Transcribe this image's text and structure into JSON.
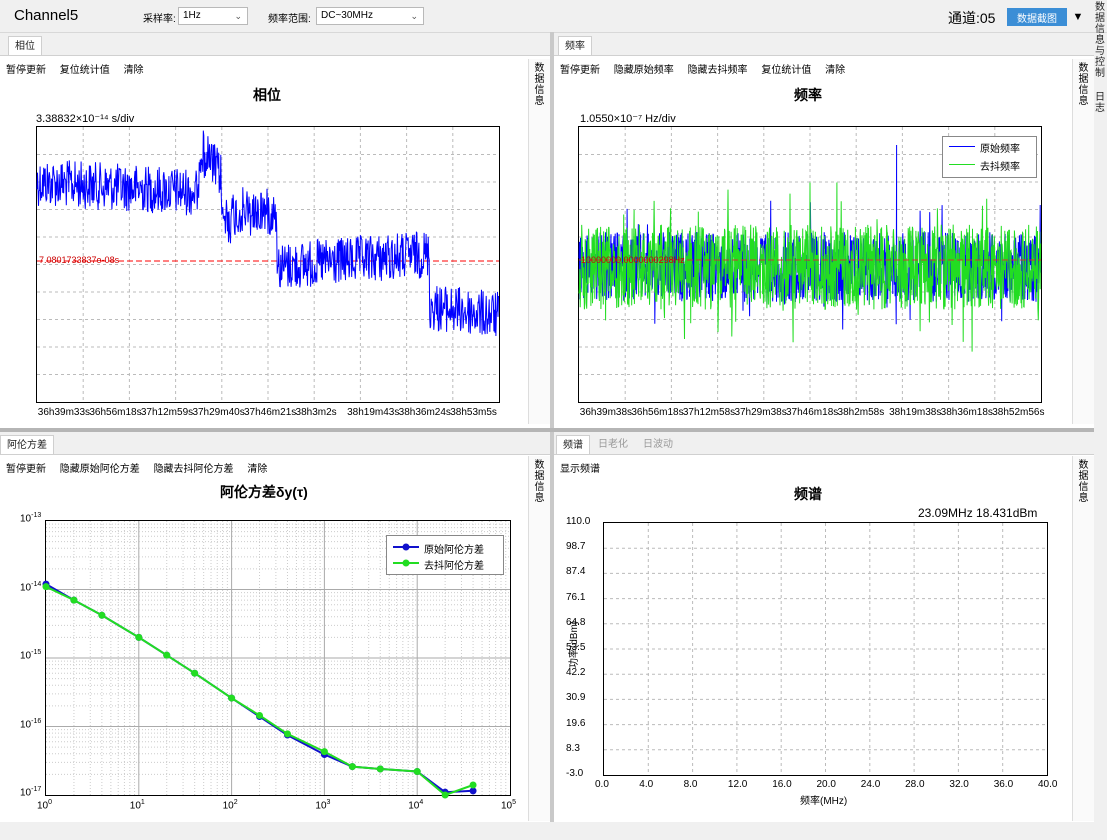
{
  "app": {
    "channel_title": "Channel5",
    "sample_rate_label": "采样率:",
    "sample_rate_value": "1Hz",
    "freq_range_label": "频率范围:",
    "freq_range_value": "DC~30MHz",
    "channel_label": "通道:05",
    "screenshot_button": "数据截图",
    "dropdown_icon": "triangle-down-icon",
    "side_tabs": [
      "数据信息与控制",
      "日志"
    ]
  },
  "phase_panel": {
    "tab": "相位",
    "toolbar": [
      "暂停更新",
      "复位统计值",
      "清除"
    ],
    "side_label": "数据信息",
    "title": "相位",
    "scale": "3.38832×10⁻¹⁴ s/div",
    "mean_label": "7.0801733837e-08s",
    "x_ticks": [
      "36h39m33s",
      "36h56m18s",
      "37h12m59s",
      "37h29m40s",
      "37h46m21s",
      "38h3m2s",
      "38h19m43s",
      "38h36m24s",
      "38h53m5s"
    ],
    "line_color": "#0000ff",
    "mean_color": "#ff0000"
  },
  "freq_panel": {
    "tab": "频率",
    "toolbar": [
      "暂停更新",
      "隐藏原始频率",
      "隐藏去抖频率",
      "复位统计值",
      "清除"
    ],
    "side_label": "数据信息",
    "title": "频率",
    "scale": "1.0550×10⁻⁷ Hz/div",
    "mean_label": "10000000.0000000298Hz",
    "legend": [
      "原始频率",
      "去抖频率"
    ],
    "x_ticks": [
      "36h39m38s",
      "36h56m18s",
      "37h12m58s",
      "37h29m38s",
      "37h46m18s",
      "38h2m58s",
      "38h19m38s",
      "38h36m18s",
      "38h52m56s"
    ],
    "raw_color": "#0000ff",
    "dejitter_color": "#22dd22"
  },
  "adev_panel": {
    "tab": "阿伦方差",
    "toolbar": [
      "暂停更新",
      "隐藏原始阿伦方差",
      "隐藏去抖阿伦方差",
      "清除"
    ],
    "side_label": "数据信息"
  },
  "spectrum_panel": {
    "tabs": [
      "频谱",
      "日老化",
      "日波动"
    ],
    "toolbar": [
      "显示频谱"
    ],
    "side_label": "数据信息"
  },
  "chart_data": [
    {
      "type": "line",
      "title": "阿伦方差δy(τ)",
      "xscale": "log",
      "yscale": "log",
      "xlim": [
        1,
        100000
      ],
      "ylim": [
        1e-17,
        1e-13
      ],
      "x_tick_labels": [
        "10^0",
        "10^1",
        "10^2",
        "10^3",
        "10^4",
        "10^5"
      ],
      "y_tick_labels": [
        "10^-13",
        "10^-14",
        "10^-15",
        "10^-16",
        "10^-17"
      ],
      "legend_position": "top-right",
      "grid": true,
      "series": [
        {
          "name": "原始阿伦方差",
          "color": "#1111cc",
          "x": [
            1,
            2,
            4,
            10,
            20,
            40,
            100,
            200,
            400,
            1000,
            2000,
            4000,
            10000,
            20000,
            40000
          ],
          "y": [
            1.2e-14,
            7e-15,
            4.2e-15,
            2e-15,
            1.1e-15,
            6e-16,
            2.6e-16,
            1.4e-16,
            7.5e-17,
            3.9e-17,
            2.6e-17,
            2.4e-17,
            2.2e-17,
            1.1e-17,
            1.15e-17
          ]
        },
        {
          "name": "去抖阿伦方差",
          "color": "#22dd22",
          "x": [
            1,
            2,
            4,
            10,
            20,
            40,
            100,
            200,
            400,
            1000,
            2000,
            4000,
            10000,
            20000,
            40000
          ],
          "y": [
            1.1e-14,
            7e-15,
            4.2e-15,
            2e-15,
            1.1e-15,
            6e-16,
            2.6e-16,
            1.45e-16,
            7.8e-17,
            4.3e-17,
            2.6e-17,
            2.4e-17,
            2.2e-17,
            1e-17,
            1.4e-17
          ]
        }
      ]
    },
    {
      "type": "line",
      "title": "频谱",
      "marker_readout": "23.09MHz  18.431dBm",
      "xlabel": "频率(MHz)",
      "ylabel": "功率(dBm)",
      "xlim": [
        0,
        40
      ],
      "ylim": [
        -3.0,
        110.0
      ],
      "x_ticks": [
        "0.0",
        "4.0",
        "8.0",
        "12.0",
        "16.0",
        "20.0",
        "24.0",
        "28.0",
        "32.0",
        "36.0",
        "40.0"
      ],
      "y_ticks": [
        "110.0",
        "98.7",
        "87.4",
        "76.1",
        "64.8",
        "53.5",
        "42.2",
        "30.9",
        "19.6",
        "8.3",
        "-3.0"
      ],
      "grid": true,
      "series": []
    }
  ]
}
